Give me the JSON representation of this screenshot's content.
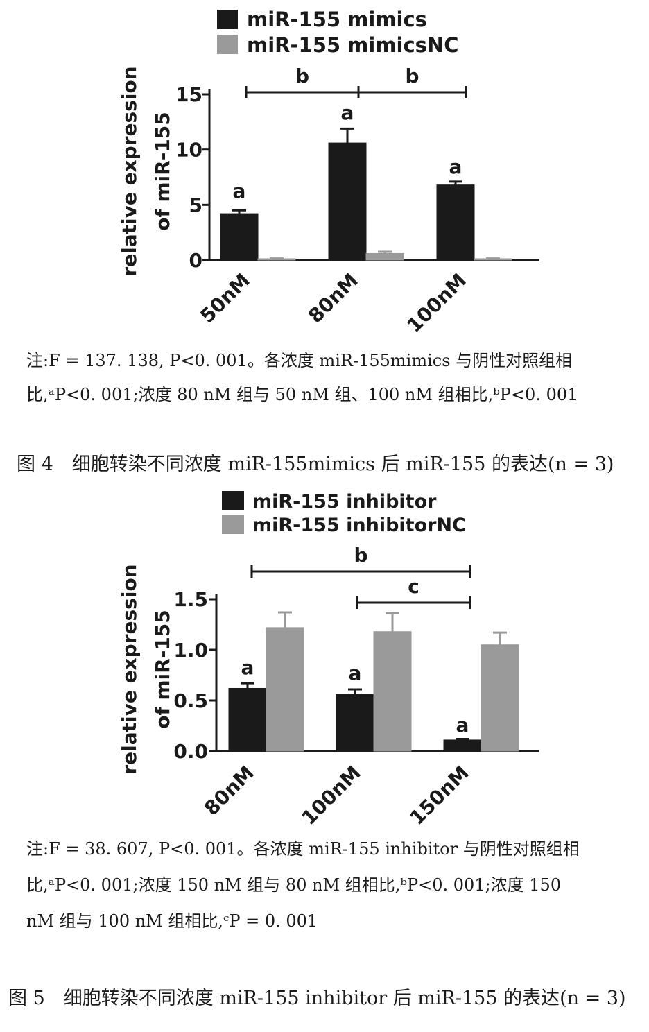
{
  "figure4": {
    "legend": [
      "miR-155 mimics",
      "miR-155 mimicsNC"
    ],
    "note_line1": "注:F = 137. 138, P<0. 001。各浓度 miR-155mimics 与阴性对照组相",
    "note_line2": "比,ᵃP<0. 001;浓度 80 nM 组与 50 nM 组、100 nM 组相比,ᵇP<0. 001",
    "caption": "图 4　细胞转染不同浓度 miR-155mimics 后 miR-155 的表达(n = 3)"
  },
  "figure5": {
    "legend": [
      "miR-155 inhibitor",
      "miR-155 inhibitorNC"
    ],
    "note_line1": "注:F = 38. 607, P<0. 001。各浓度 miR-155 inhibitor 与阴性对照组相",
    "note_line2": "比,ᵃP<0. 001;浓度 150 nM 组与 80 nM 组相比,ᵇP<0. 001;浓度 150",
    "note_line3": "nM 组与 100 nM 组相比,ᶜP = 0. 001",
    "caption": "图 5　细胞转染不同浓度 miR-155 inhibitor 后 miR-155 的表达(n = 3)"
  },
  "colors": {
    "black_series": "#1a1a1a",
    "grey_series": "#9a9a9a"
  },
  "chart_data": [
    {
      "type": "bar",
      "categories": [
        "50nM",
        "80nM",
        "100nM"
      ],
      "ylabel": "relative expression of miR-155",
      "ylim": [
        0,
        15
      ],
      "yticks": [
        0,
        5,
        10,
        15
      ],
      "series": [
        {
          "name": "miR-155 mimics",
          "values": [
            4.2,
            10.6,
            6.8
          ],
          "errors": [
            0.3,
            1.3,
            0.3
          ],
          "color": "#1a1a1a"
        },
        {
          "name": "miR-155 mimicsNC",
          "values": [
            0.1,
            0.6,
            0.1
          ],
          "errors": [
            0.05,
            0.15,
            0.05
          ],
          "color": "#9a9a9a"
        }
      ],
      "annotations": [
        {
          "label": "a",
          "category": "50nM"
        },
        {
          "label": "a",
          "category": "80nM"
        },
        {
          "label": "a",
          "category": "100nM"
        },
        {
          "label": "b",
          "between": [
            "50nM",
            "80nM"
          ]
        },
        {
          "label": "b",
          "between": [
            "80nM",
            "100nM"
          ]
        }
      ],
      "grid": false
    },
    {
      "type": "bar",
      "categories": [
        "80nM",
        "100nM",
        "150nM"
      ],
      "ylabel": "relative expression of miR-155",
      "ylim": [
        0,
        1.5
      ],
      "yticks": [
        "0.0",
        "0.5",
        "1.0",
        "1.5"
      ],
      "series": [
        {
          "name": "miR-155 inhibitor",
          "values": [
            0.62,
            0.56,
            0.11
          ],
          "errors": [
            0.05,
            0.05,
            0.01
          ],
          "color": "#1a1a1a"
        },
        {
          "name": "miR-155 inhibitorNC",
          "values": [
            1.22,
            1.18,
            1.05
          ],
          "errors": [
            0.15,
            0.18,
            0.12
          ],
          "color": "#9a9a9a"
        }
      ],
      "annotations": [
        {
          "label": "a",
          "category": "80nM"
        },
        {
          "label": "a",
          "category": "100nM"
        },
        {
          "label": "a",
          "category": "150nM"
        },
        {
          "label": "b",
          "between": [
            "80nM",
            "150nM"
          ]
        },
        {
          "label": "c",
          "between": [
            "100nM",
            "150nM"
          ]
        }
      ],
      "grid": false
    }
  ]
}
